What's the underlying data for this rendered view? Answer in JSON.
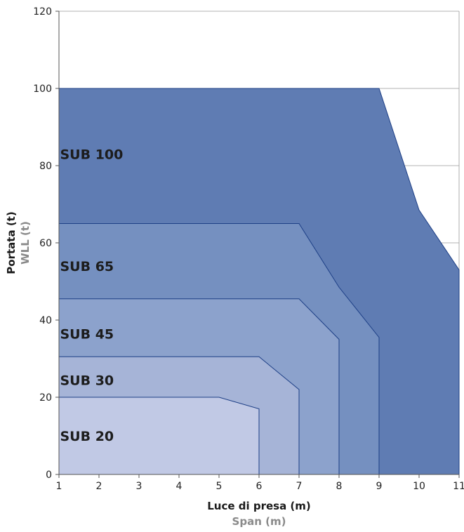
{
  "chart_data": {
    "type": "area",
    "xlabel": "Luce di presa (m)",
    "xlabel_secondary": "Span (m)",
    "ylabel": "Portata (t)",
    "ylabel_secondary": "WLL (t)",
    "xlim": [
      1,
      11
    ],
    "ylim": [
      0,
      120
    ],
    "xticks": [
      "1",
      "2",
      "3",
      "4",
      "5",
      "6",
      "7",
      "8",
      "9",
      "10",
      "11"
    ],
    "yticks": [
      "0",
      "20",
      "40",
      "60",
      "80",
      "100",
      "120"
    ],
    "grid": "horizontal",
    "legend": "none",
    "series": [
      {
        "name": "SUB 100",
        "color": "#5f7cb3",
        "label_pos": [
          1.5,
          83
        ],
        "x": [
          1,
          1,
          9,
          10,
          11,
          11
        ],
        "y": [
          0,
          100,
          100,
          68.5,
          53,
          0
        ]
      },
      {
        "name": "SUB 65",
        "color": "#7590c0",
        "label_pos": [
          1.5,
          54
        ],
        "x": [
          1,
          1,
          7,
          8,
          9,
          9
        ],
        "y": [
          0,
          65,
          65,
          48.5,
          35.5,
          0
        ]
      },
      {
        "name": "SUB 45",
        "color": "#8ca2cc",
        "label_pos": [
          1.5,
          36.5
        ],
        "x": [
          1,
          1,
          7,
          8,
          8
        ],
        "y": [
          0,
          45.5,
          45.5,
          35,
          0
        ]
      },
      {
        "name": "SUB 30",
        "color": "#a6b4d7",
        "label_pos": [
          1.5,
          24.5
        ],
        "x": [
          1,
          1,
          6,
          7,
          7
        ],
        "y": [
          0,
          30.5,
          30.5,
          22,
          0
        ]
      },
      {
        "name": "SUB 20",
        "color": "#c1c9e5",
        "label_pos": [
          1.5,
          10
        ],
        "x": [
          1,
          1,
          5,
          6,
          6
        ],
        "y": [
          0,
          20,
          20,
          17,
          0
        ]
      }
    ]
  }
}
